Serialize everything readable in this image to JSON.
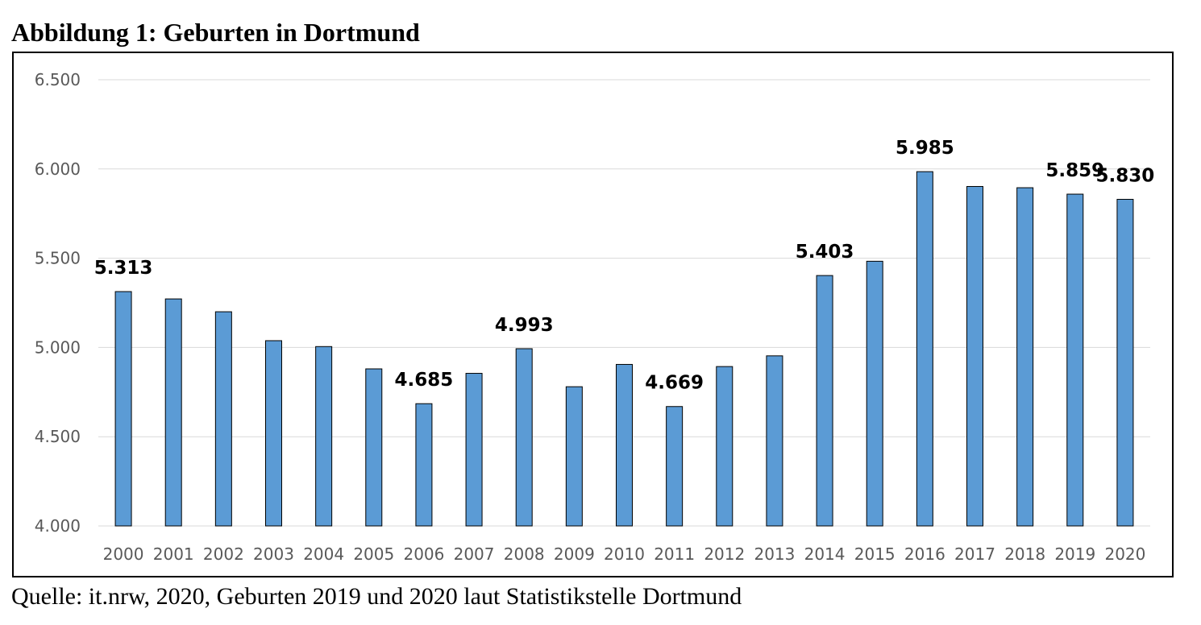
{
  "figure": {
    "title": "Abbildung 1: Geburten in Dortmund",
    "source": "Quelle: it.nrw, 2020, Geburten 2019 und 2020 laut Statistikstelle Dortmund"
  },
  "chart_data": {
    "type": "bar",
    "title": "",
    "xlabel": "",
    "ylabel": "",
    "categories": [
      "2000",
      "2001",
      "2002",
      "2003",
      "2004",
      "2005",
      "2006",
      "2007",
      "2008",
      "2009",
      "2010",
      "2011",
      "2012",
      "2013",
      "2014",
      "2015",
      "2016",
      "2017",
      "2018",
      "2019",
      "2020"
    ],
    "values": [
      5313,
      5272,
      5200,
      5038,
      5005,
      4880,
      4685,
      4855,
      4993,
      4780,
      4905,
      4669,
      4893,
      4953,
      5403,
      5483,
      5985,
      5902,
      5895,
      5859,
      5830
    ],
    "data_labels": {
      "2000": "5.313",
      "2006": "4.685",
      "2008": "4.993",
      "2011": "4.669",
      "2014": "5.403",
      "2016": "5.985",
      "2019": "5.859",
      "2020": "5.830"
    },
    "ylim": [
      4000,
      6500
    ],
    "yticks": [
      4000,
      4500,
      5000,
      5500,
      6000,
      6500
    ],
    "ytick_labels": [
      "4.000",
      "4.500",
      "5.000",
      "5.500",
      "6.000",
      "6.500"
    ],
    "grid": true,
    "legend": "none",
    "colors": {
      "bar": "#5b9bd5",
      "bar_edge": "#000000",
      "grid": "#d9d9d9",
      "tick_text": "#595959"
    }
  }
}
